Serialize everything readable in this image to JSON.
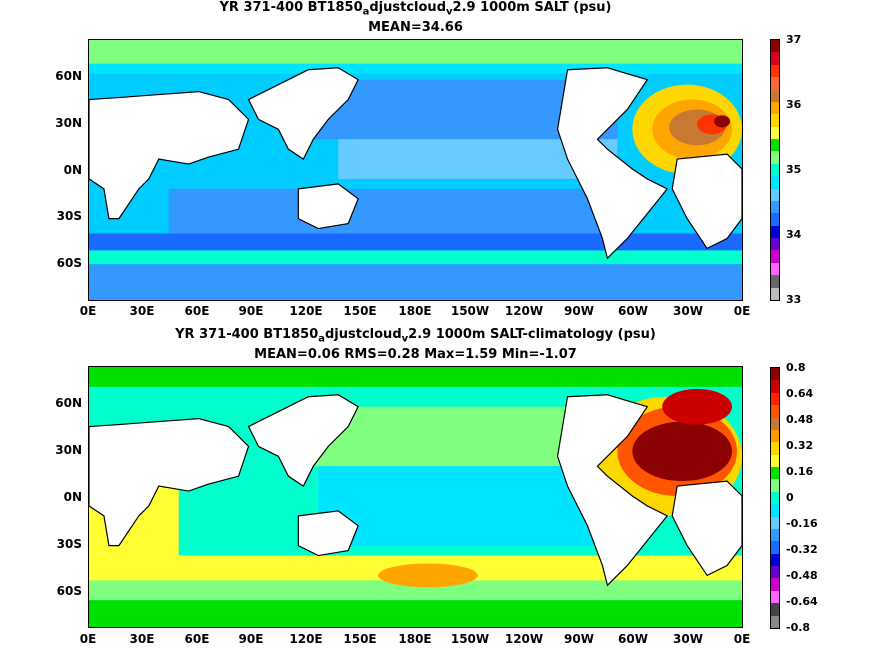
{
  "top": {
    "title_pre": "YR 371-400 BT1850",
    "title_sub1": "a",
    "title_mid": "djustcloud",
    "title_sub2": "v",
    "title_post": "2.9 1000m SALT (psu)",
    "stats": "MEAN=34.66"
  },
  "bottom": {
    "title_pre": "YR 371-400 BT1850",
    "title_sub1": "a",
    "title_mid": "djustcloud",
    "title_sub2": "v",
    "title_post": "2.9 1000m SALT-climatology (psu)",
    "stats": "MEAN=0.06   RMS=0.28   Max=1.59   Min=-1.07"
  },
  "lat_labels": [
    "60N",
    "30N",
    "0N",
    "30S",
    "60S"
  ],
  "lon_labels": [
    "0E",
    "30E",
    "60E",
    "90E",
    "120E",
    "150E",
    "180E",
    "150W",
    "120W",
    "90W",
    "60W",
    "30W",
    "0E"
  ],
  "top_colorbar": {
    "labels": [
      "37",
      "36",
      "35",
      "34",
      "33"
    ],
    "colors": [
      "#8b0000",
      "#d9001b",
      "#ff3300",
      "#ff6633",
      "#c87832",
      "#ffa500",
      "#ffd700",
      "#ffff40",
      "#00e000",
      "#80ff80",
      "#00ffcc",
      "#00e5ff",
      "#66ccff",
      "#3399ff",
      "#1a6aff",
      "#0000dd",
      "#6600cc",
      "#cc00cc",
      "#ff66ff",
      "#666666",
      "#bbbbbb"
    ]
  },
  "bottom_colorbar": {
    "labels": [
      "0.8",
      "0.64",
      "0.48",
      "0.32",
      "0.16",
      "0",
      "-0.16",
      "-0.32",
      "-0.48",
      "-0.64",
      "-0.8"
    ],
    "colors": [
      "#8b0000",
      "#cc0000",
      "#ff2200",
      "#ff5500",
      "#c87832",
      "#ff9900",
      "#ffd700",
      "#ffff33",
      "#00e000",
      "#80ff80",
      "#00ffcc",
      "#00e5ff",
      "#66ccff",
      "#3399ff",
      "#1a6aff",
      "#0000dd",
      "#6600cc",
      "#cc00cc",
      "#ff66ff",
      "#444444",
      "#888888"
    ]
  }
}
